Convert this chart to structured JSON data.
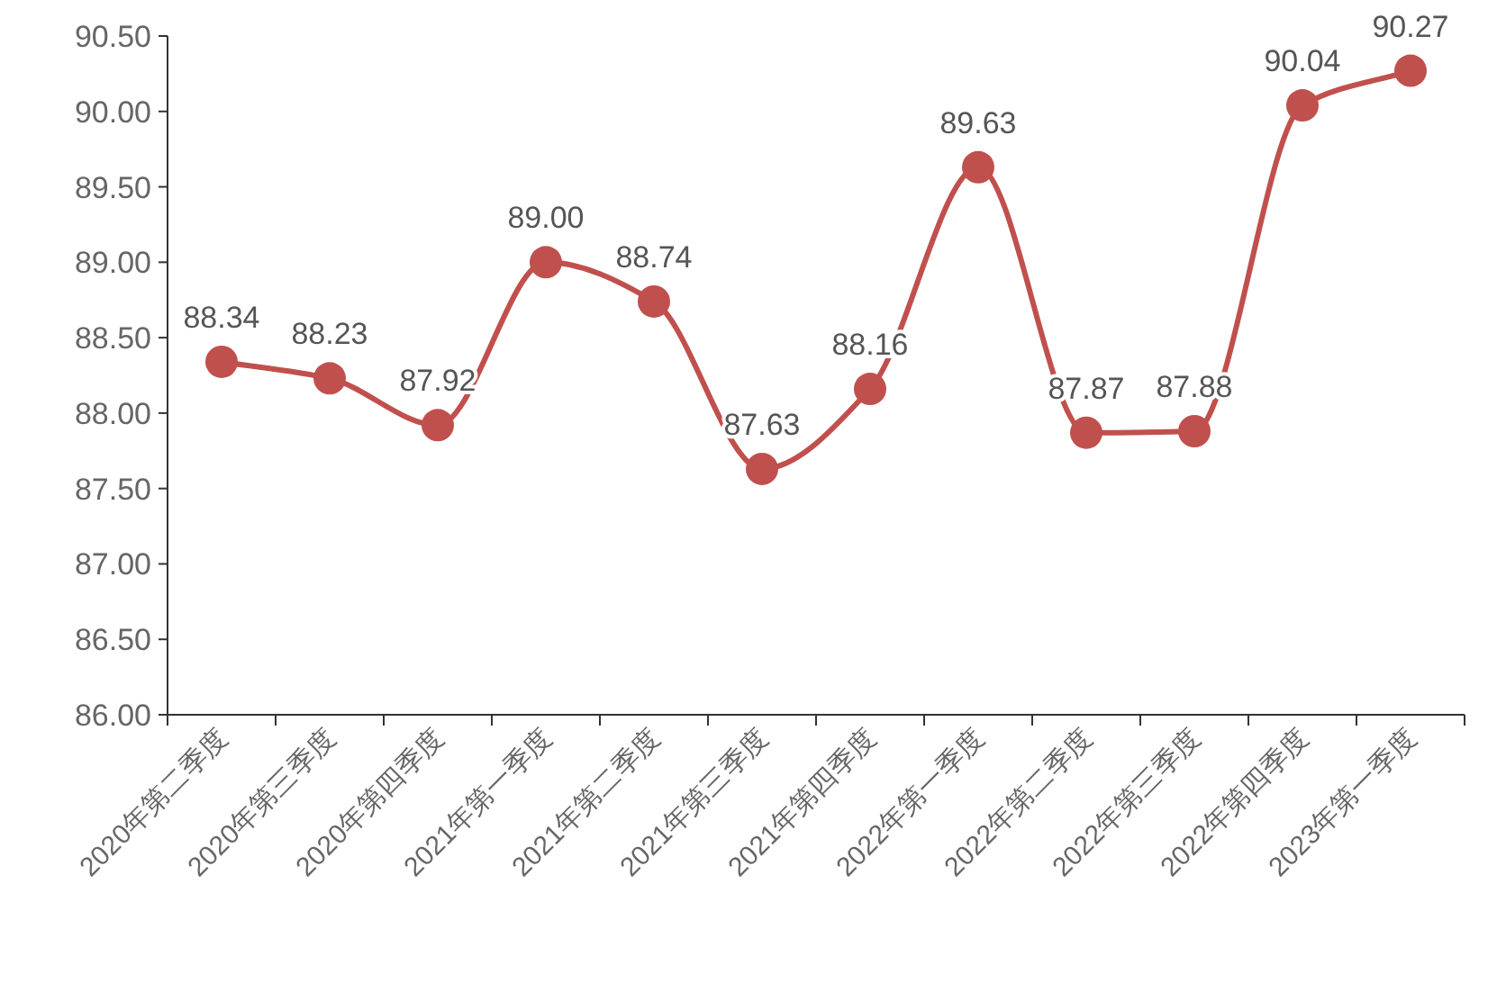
{
  "chart_data": {
    "type": "line",
    "categories": [
      "2020年第二季度",
      "2020年第三季度",
      "2020年第四季度",
      "2021年第一季度",
      "2021年第二季度",
      "2021年第三季度",
      "2021年第四季度",
      "2022年第一季度",
      "2022年第二季度",
      "2022年第三季度",
      "2022年第四季度",
      "2023年第一季度"
    ],
    "series": [
      {
        "color": "#c0504d",
        "values": [
          88.34,
          88.23,
          87.92,
          89.0,
          88.74,
          87.63,
          88.16,
          89.63,
          87.87,
          87.88,
          90.04,
          90.27
        ],
        "value_labels": [
          "88.34",
          "88.23",
          "87.92",
          "89.00",
          "88.74",
          "87.63",
          "88.16",
          "89.63",
          "87.87",
          "87.88",
          "90.04",
          "90.27"
        ]
      }
    ],
    "ylim": [
      86,
      90.5
    ],
    "yticks": [
      {
        "value": 86,
        "label": "86.00"
      },
      {
        "value": 86.5,
        "label": "86.50"
      },
      {
        "value": 87,
        "label": "87.00"
      },
      {
        "value": 87.5,
        "label": "87.50"
      },
      {
        "value": 88,
        "label": "88.00"
      },
      {
        "value": 88.5,
        "label": "88.50"
      },
      {
        "value": 89,
        "label": "89.00"
      },
      {
        "value": 89.5,
        "label": "89.50"
      },
      {
        "value": 90,
        "label": "90.00"
      },
      {
        "value": 90.5,
        "label": "90.50"
      }
    ],
    "marker": "circle",
    "line_style": "solid",
    "grid": false
  }
}
